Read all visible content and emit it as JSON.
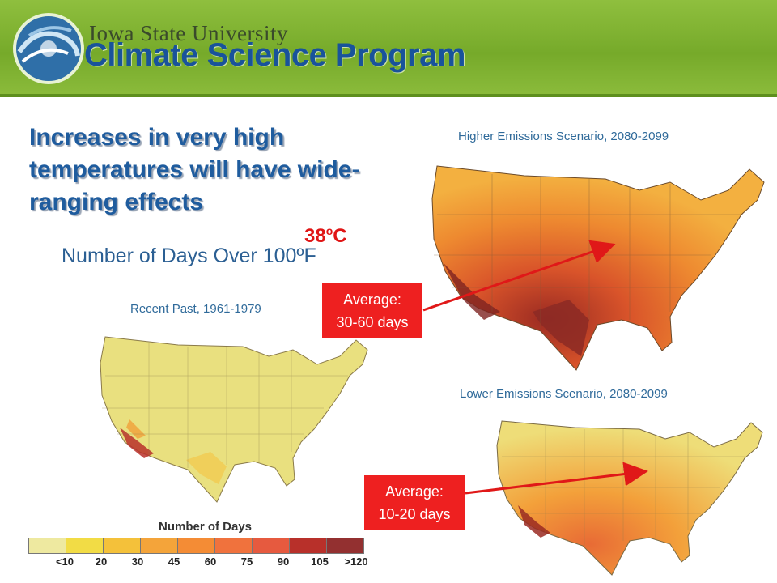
{
  "header": {
    "university": "Iowa State University",
    "program": "Climate Science Program"
  },
  "slide": {
    "title": "Increases in very high temperatures will have wide-ranging effects",
    "subtitle": "Number of Days Over 100ºF",
    "celsius_value": "38",
    "celsius_sup": "o",
    "celsius_unit": "C"
  },
  "maps": {
    "recent": {
      "label": "Recent Past, 1961-1979"
    },
    "higher": {
      "label": "Higher Emissions Scenario, 2080-2099",
      "average_label": "Average:",
      "average_value": "30-60 days"
    },
    "lower": {
      "label": "Lower Emissions Scenario, 2080-2099",
      "average_label": "Average:",
      "average_value": "10-20 days"
    }
  },
  "legend": {
    "title": "Number of Days",
    "ticks": [
      "<10",
      "20",
      "30",
      "45",
      "60",
      "75",
      "90",
      "105",
      ">120"
    ],
    "colors": [
      "#eee9a0",
      "#f2dc45",
      "#f4c13a",
      "#f4a43a",
      "#f48c35",
      "#f0723d",
      "#e65a3f",
      "#b8302a",
      "#933030"
    ]
  },
  "colors": {
    "header_green": "#7fb232",
    "title_blue": "#1f5c9e",
    "accent_red": "#ee2020",
    "map_base": "#e9e07f"
  }
}
